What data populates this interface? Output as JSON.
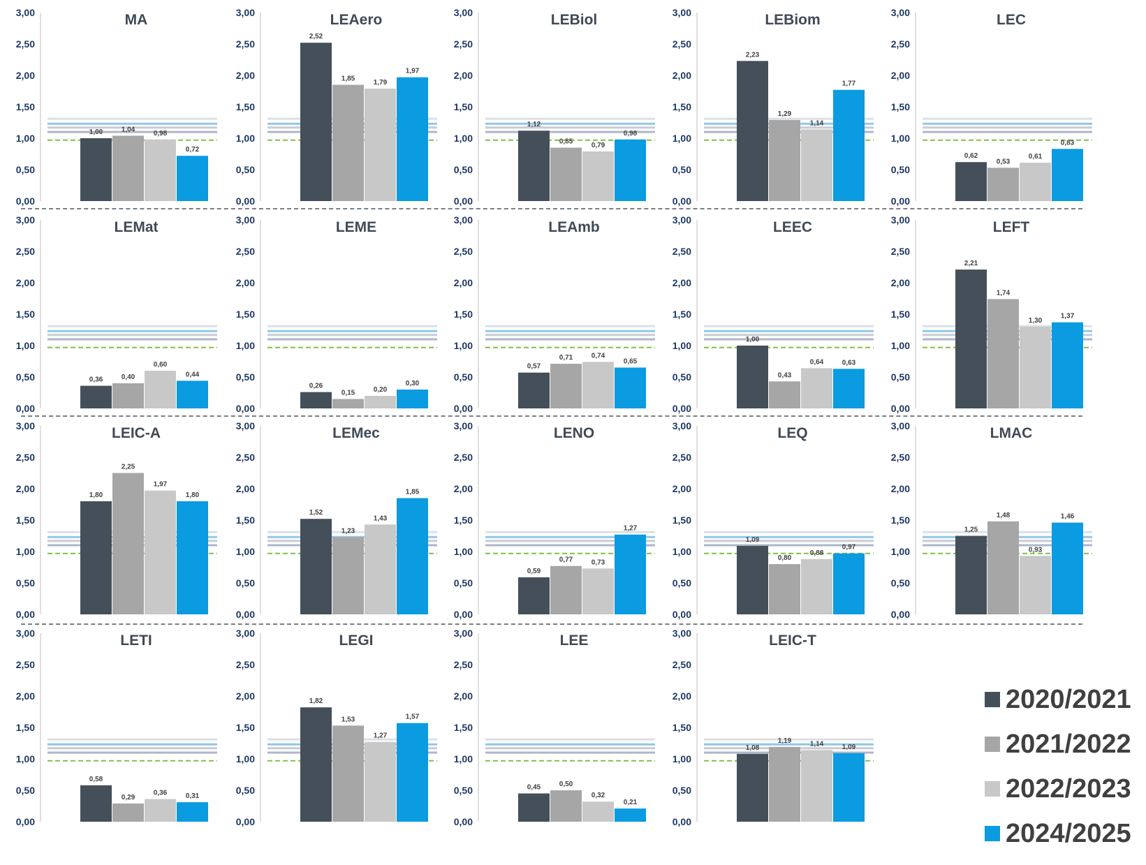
{
  "chart_data": [
    {
      "type": "bar",
      "title": "MA",
      "categories": [
        "2020/2021",
        "2021/2022",
        "2022/2023",
        "2024/2025"
      ],
      "values": [
        1.0,
        1.04,
        0.98,
        0.72
      ],
      "labels": [
        "1,00",
        "1,04",
        "0,98",
        "0,72"
      ],
      "ylim": [
        0,
        3
      ],
      "yticks": [
        "0,00",
        "0,50",
        "1,00",
        "1,50",
        "2,00",
        "2,50",
        "3,00"
      ]
    },
    {
      "type": "bar",
      "title": "LEAero",
      "categories": [
        "2020/2021",
        "2021/2022",
        "2022/2023",
        "2024/2025"
      ],
      "values": [
        2.52,
        1.85,
        1.79,
        1.97
      ],
      "labels": [
        "2,52",
        "1,85",
        "1,79",
        "1,97"
      ],
      "ylim": [
        0,
        3
      ],
      "yticks": [
        "0,00",
        "0,50",
        "1,00",
        "1,50",
        "2,00",
        "2,50",
        "3,00"
      ]
    },
    {
      "type": "bar",
      "title": "LEBiol",
      "categories": [
        "2020/2021",
        "2021/2022",
        "2022/2023",
        "2024/2025"
      ],
      "values": [
        1.12,
        0.85,
        0.79,
        0.98
      ],
      "labels": [
        "1,12",
        "0,85",
        "0,79",
        "0,98"
      ],
      "ylim": [
        0,
        3
      ],
      "yticks": [
        "0,00",
        "0,50",
        "1,00",
        "1,50",
        "2,00",
        "2,50",
        "3,00"
      ]
    },
    {
      "type": "bar",
      "title": "LEBiom",
      "categories": [
        "2020/2021",
        "2021/2022",
        "2022/2023",
        "2024/2025"
      ],
      "values": [
        2.23,
        1.29,
        1.14,
        1.77
      ],
      "labels": [
        "2,23",
        "1,29",
        "1,14",
        "1,77"
      ],
      "ylim": [
        0,
        3
      ],
      "yticks": [
        "0,00",
        "0,50",
        "1,00",
        "1,50",
        "2,00",
        "2,50",
        "3,00"
      ]
    },
    {
      "type": "bar",
      "title": "LEC",
      "categories": [
        "2020/2021",
        "2021/2022",
        "2022/2023",
        "2024/2025"
      ],
      "values": [
        0.62,
        0.53,
        0.61,
        0.83
      ],
      "labels": [
        "0,62",
        "0,53",
        "0,61",
        "0,83"
      ],
      "ylim": [
        0,
        3
      ],
      "yticks": [
        "0,00",
        "0,50",
        "1,00",
        "1,50",
        "2,00",
        "2,50",
        "3,00"
      ]
    },
    {
      "type": "bar",
      "title": "LEMat",
      "categories": [
        "2020/2021",
        "2021/2022",
        "2022/2023",
        "2024/2025"
      ],
      "values": [
        0.36,
        0.4,
        0.6,
        0.44
      ],
      "labels": [
        "0,36",
        "0,40",
        "0,60",
        "0,44"
      ],
      "ylim": [
        0,
        3
      ],
      "yticks": [
        "0,00",
        "0,50",
        "1,00",
        "1,50",
        "2,00",
        "2,50",
        "3,00"
      ]
    },
    {
      "type": "bar",
      "title": "LEME",
      "categories": [
        "2020/2021",
        "2021/2022",
        "2022/2023",
        "2024/2025"
      ],
      "values": [
        0.26,
        0.15,
        0.2,
        0.3
      ],
      "labels": [
        "0,26",
        "0,15",
        "0,20",
        "0,30"
      ],
      "ylim": [
        0,
        3
      ],
      "yticks": [
        "0,00",
        "0,50",
        "1,00",
        "1,50",
        "2,00",
        "2,50",
        "3,00"
      ]
    },
    {
      "type": "bar",
      "title": "LEAmb",
      "categories": [
        "2020/2021",
        "2021/2022",
        "2022/2023",
        "2024/2025"
      ],
      "values": [
        0.57,
        0.71,
        0.74,
        0.65
      ],
      "labels": [
        "0,57",
        "0,71",
        "0,74",
        "0,65"
      ],
      "ylim": [
        0,
        3
      ],
      "yticks": [
        "0,00",
        "0,50",
        "1,00",
        "1,50",
        "2,00",
        "2,50",
        "3,00"
      ]
    },
    {
      "type": "bar",
      "title": "LEEC",
      "categories": [
        "2020/2021",
        "2021/2022",
        "2022/2023",
        "2024/2025"
      ],
      "values": [
        1.0,
        0.43,
        0.64,
        0.63
      ],
      "labels": [
        "1,00",
        "0,43",
        "0,64",
        "0,63"
      ],
      "ylim": [
        0,
        3
      ],
      "yticks": [
        "0,00",
        "0,50",
        "1,00",
        "1,50",
        "2,00",
        "2,50",
        "3,00"
      ]
    },
    {
      "type": "bar",
      "title": "LEFT",
      "categories": [
        "2020/2021",
        "2021/2022",
        "2022/2023",
        "2024/2025"
      ],
      "values": [
        2.21,
        1.74,
        1.3,
        1.37
      ],
      "labels": [
        "2,21",
        "1,74",
        "1,30",
        "1,37"
      ],
      "ylim": [
        0,
        3
      ],
      "yticks": [
        "0,00",
        "0,50",
        "1,00",
        "1,50",
        "2,00",
        "2,50",
        "3,00"
      ]
    },
    {
      "type": "bar",
      "title": "LEIC-A",
      "categories": [
        "2020/2021",
        "2021/2022",
        "2022/2023",
        "2024/2025"
      ],
      "values": [
        1.8,
        2.25,
        1.97,
        1.8
      ],
      "labels": [
        "1,80",
        "2,25",
        "1,97",
        "1,80"
      ],
      "ylim": [
        0,
        3
      ],
      "yticks": [
        "0,00",
        "0,50",
        "1,00",
        "1,50",
        "2,00",
        "2,50",
        "3,00"
      ]
    },
    {
      "type": "bar",
      "title": "LEMec",
      "categories": [
        "2020/2021",
        "2021/2022",
        "2022/2023",
        "2024/2025"
      ],
      "values": [
        1.52,
        1.23,
        1.43,
        1.85
      ],
      "labels": [
        "1,52",
        "1,23",
        "1,43",
        "1,85"
      ],
      "ylim": [
        0,
        3
      ],
      "yticks": [
        "0,00",
        "0,50",
        "1,00",
        "1,50",
        "2,00",
        "2,50",
        "3,00"
      ]
    },
    {
      "type": "bar",
      "title": "LENO",
      "categories": [
        "2020/2021",
        "2021/2022",
        "2022/2023",
        "2024/2025"
      ],
      "values": [
        0.59,
        0.77,
        0.73,
        1.27
      ],
      "labels": [
        "0,59",
        "0,77",
        "0,73",
        "1,27"
      ],
      "ylim": [
        0,
        3
      ],
      "yticks": [
        "0,00",
        "0,50",
        "1,00",
        "1,50",
        "2,00",
        "2,50",
        "3,00"
      ]
    },
    {
      "type": "bar",
      "title": "LEQ",
      "categories": [
        "2020/2021",
        "2021/2022",
        "2022/2023",
        "2024/2025"
      ],
      "values": [
        1.09,
        0.8,
        0.88,
        0.97
      ],
      "labels": [
        "1,09",
        "0,80",
        "0,88",
        "0,97"
      ],
      "ylim": [
        0,
        3
      ],
      "yticks": [
        "0,00",
        "0,50",
        "1,00",
        "1,50",
        "2,00",
        "2,50",
        "3,00"
      ]
    },
    {
      "type": "bar",
      "title": "LMAC",
      "categories": [
        "2020/2021",
        "2021/2022",
        "2022/2023",
        "2024/2025"
      ],
      "values": [
        1.25,
        1.48,
        0.93,
        1.46
      ],
      "labels": [
        "1,25",
        "1,48",
        "0,93",
        "1,46"
      ],
      "ylim": [
        0,
        3
      ],
      "yticks": [
        "0,00",
        "0,50",
        "1,00",
        "1,50",
        "2,00",
        "2,50",
        "3,00"
      ]
    },
    {
      "type": "bar",
      "title": "LETI",
      "categories": [
        "2020/2021",
        "2021/2022",
        "2022/2023",
        "2024/2025"
      ],
      "values": [
        0.58,
        0.29,
        0.36,
        0.31
      ],
      "labels": [
        "0,58",
        "0,29",
        "0,36",
        "0,31"
      ],
      "ylim": [
        0,
        3
      ],
      "yticks": [
        "0,00",
        "0,50",
        "1,00",
        "1,50",
        "2,00",
        "2,50",
        "3,00"
      ]
    },
    {
      "type": "bar",
      "title": "LEGI",
      "categories": [
        "2020/2021",
        "2021/2022",
        "2022/2023",
        "2024/2025"
      ],
      "values": [
        1.82,
        1.53,
        1.27,
        1.57
      ],
      "labels": [
        "1,82",
        "1,53",
        "1,27",
        "1,57"
      ],
      "ylim": [
        0,
        3
      ],
      "yticks": [
        "0,00",
        "0,50",
        "1,00",
        "1,50",
        "2,00",
        "2,50",
        "3,00"
      ]
    },
    {
      "type": "bar",
      "title": "LEE",
      "categories": [
        "2020/2021",
        "2021/2022",
        "2022/2023",
        "2024/2025"
      ],
      "values": [
        0.45,
        0.5,
        0.32,
        0.21
      ],
      "labels": [
        "0,45",
        "0,50",
        "0,32",
        "0,21"
      ],
      "ylim": [
        0,
        3
      ],
      "yticks": [
        "0,00",
        "0,50",
        "1,00",
        "1,50",
        "2,00",
        "2,50",
        "3,00"
      ]
    },
    {
      "type": "bar",
      "title": "LEIC-T",
      "categories": [
        "2020/2021",
        "2021/2022",
        "2022/2023",
        "2024/2025"
      ],
      "values": [
        1.08,
        1.19,
        1.14,
        1.09
      ],
      "labels": [
        "1,08",
        "1,19",
        "1,14",
        "1,09"
      ],
      "ylim": [
        0,
        3
      ],
      "yticks": [
        "0,00",
        "0,50",
        "1,00",
        "1,50",
        "2,00",
        "2,50",
        "3,00"
      ]
    }
  ],
  "legend": [
    {
      "label": "2020/2021",
      "color": "#444f5a"
    },
    {
      "label": "2021/2022",
      "color": "#a6a6a6"
    },
    {
      "label": "2022/2023",
      "color": "#c8c8c8"
    },
    {
      "label": "2024/2025",
      "color": "#0a9be0"
    }
  ],
  "reference_lines": [
    {
      "value": 1.31,
      "color": "#dcdfe5"
    },
    {
      "value": 1.23,
      "color": "#8fc8ea"
    },
    {
      "value": 1.17,
      "color": "#c9ccd4"
    },
    {
      "value": 1.1,
      "color": "#aeb7c8"
    },
    {
      "value": 0.97,
      "color": "#7dc242",
      "dashed": true
    }
  ]
}
